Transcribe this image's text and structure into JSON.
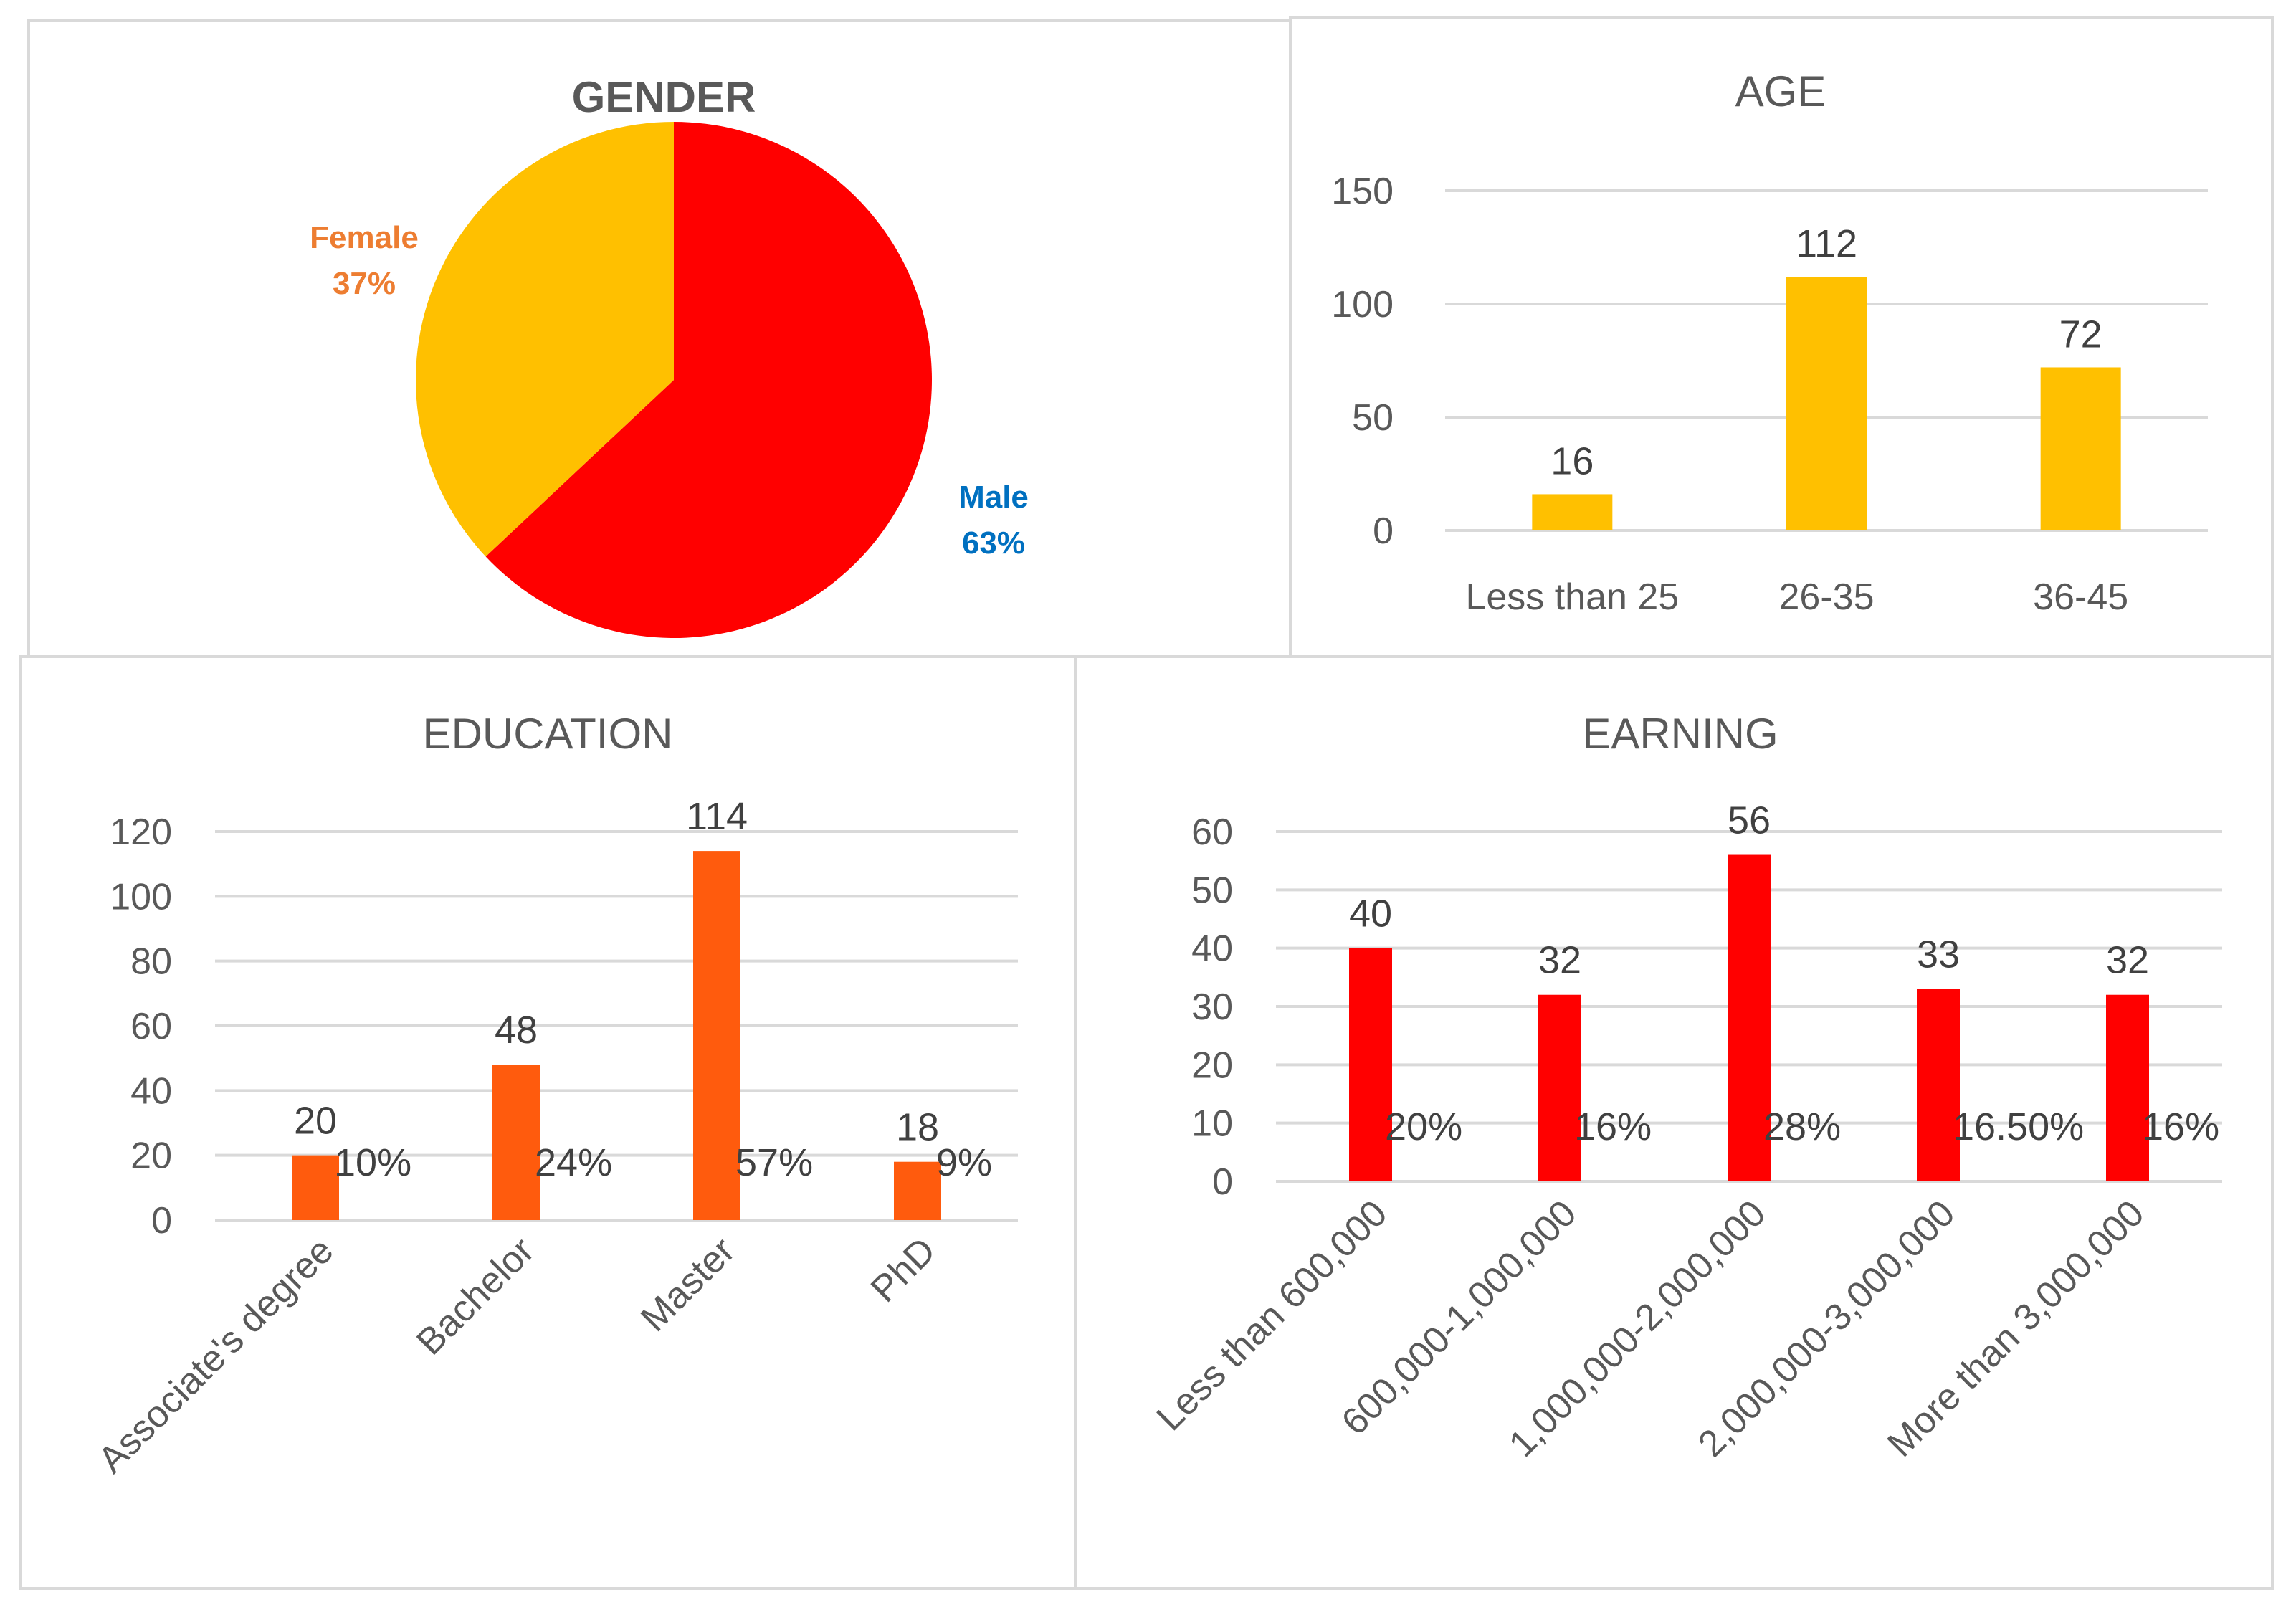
{
  "colors": {
    "female": "#FFC000",
    "male": "#FF0000",
    "female_label": "#ED7D31",
    "male_label": "#0070C0",
    "age_bar": "#FFC000",
    "education_bar": "#FF5B0D",
    "earning_bar": "#FF0000"
  },
  "chart_data": [
    {
      "id": "gender",
      "type": "pie",
      "title": "GENDER",
      "slices": [
        {
          "label": "Male",
          "value": 63,
          "pct_label": "63%",
          "color_key": "male",
          "label_color_key": "male_label"
        },
        {
          "label": "Female",
          "value": 37,
          "pct_label": "37%",
          "color_key": "female",
          "label_color_key": "female_label"
        }
      ]
    },
    {
      "id": "age",
      "type": "bar",
      "title": "AGE",
      "categories": [
        "Less than 25",
        "26-35",
        "36-45"
      ],
      "values": [
        16,
        112,
        72
      ],
      "value_labels": [
        "16",
        "112",
        "72"
      ],
      "ylim": [
        0,
        150
      ],
      "yticks": [
        "0",
        "50",
        "100",
        "150"
      ],
      "color_key": "age_bar"
    },
    {
      "id": "education",
      "type": "bar",
      "title": "EDUCATION",
      "categories": [
        "Associate's degree",
        "Bachelor",
        "Master",
        "PhD"
      ],
      "values": [
        20,
        48,
        114,
        18
      ],
      "value_labels": [
        "20",
        "48",
        "114",
        "18"
      ],
      "percent_labels": [
        "10%",
        "24%",
        "57%",
        "9%"
      ],
      "ylim": [
        0,
        120
      ],
      "yticks": [
        "0",
        "20",
        "40",
        "60",
        "80",
        "100",
        "120"
      ],
      "color_key": "education_bar"
    },
    {
      "id": "earning",
      "type": "bar",
      "title": "EARNING",
      "categories": [
        "Less than 600,000",
        "600,000-1,000,000",
        "1,000,000-2,000,000",
        "2,000,000-3,000,000",
        "More than 3,000,000"
      ],
      "values": [
        40,
        32,
        56,
        33,
        32
      ],
      "value_labels": [
        "40",
        "32",
        "56",
        "33",
        "32"
      ],
      "percent_labels": [
        "20%",
        "16%",
        "28%",
        "16.50%",
        "16%"
      ],
      "ylim": [
        0,
        60
      ],
      "yticks": [
        "0",
        "10",
        "20",
        "30",
        "40",
        "50",
        "60"
      ],
      "color_key": "earning_bar"
    }
  ]
}
